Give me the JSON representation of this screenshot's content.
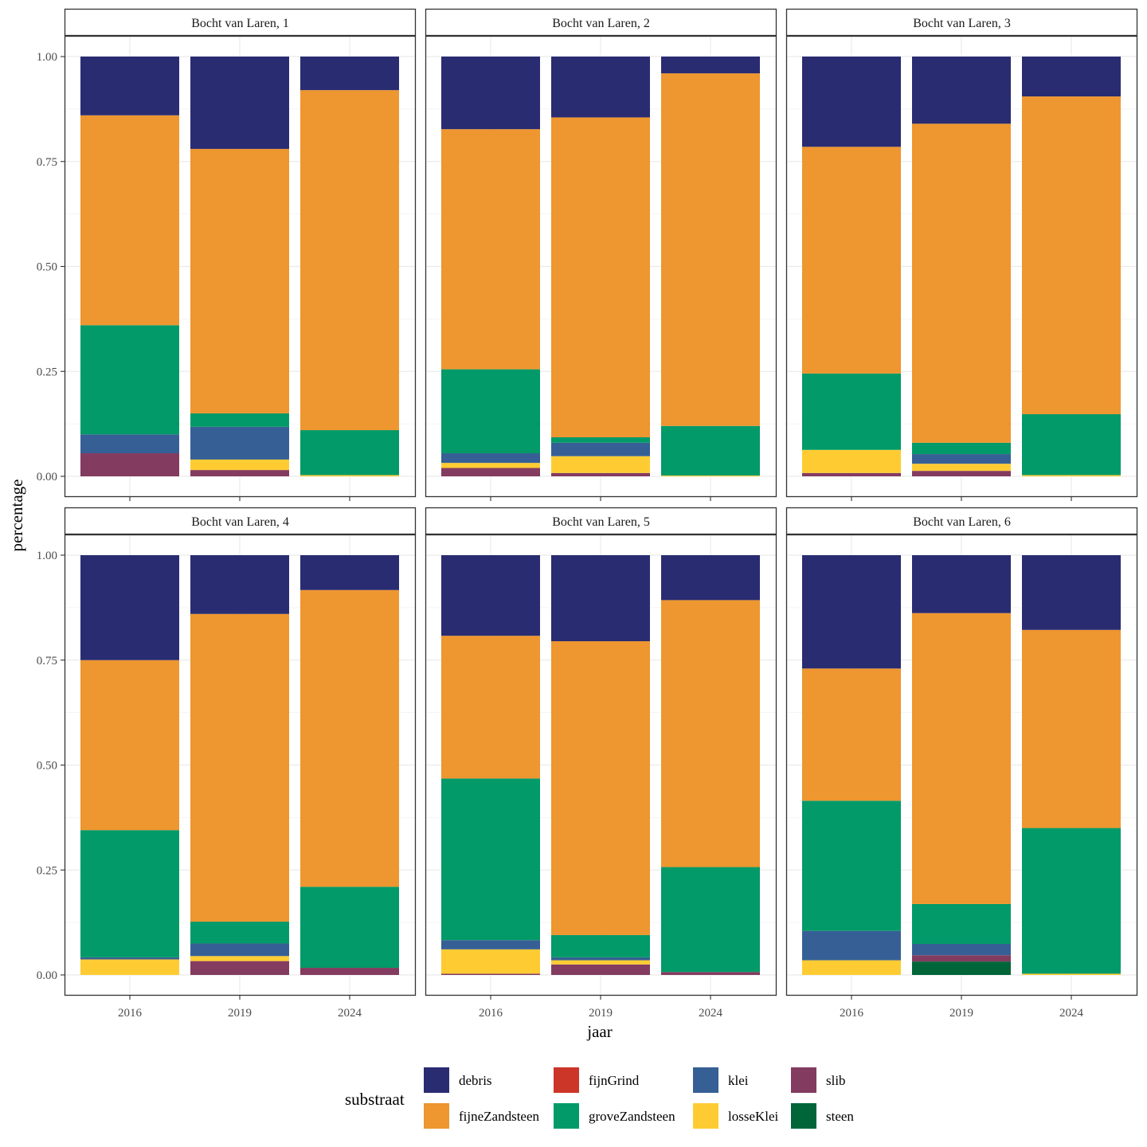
{
  "chart_data": {
    "type": "bar",
    "stacked": true,
    "xlabel": "jaar",
    "ylabel": "percentage",
    "ylim": [
      0,
      1.05
    ],
    "yticks": [
      "0.00",
      "0.25",
      "0.50",
      "0.75",
      "1.00"
    ],
    "ytick_values": [
      0,
      0.25,
      0.5,
      0.75,
      1.0
    ],
    "categories": [
      "2016",
      "2019",
      "2024"
    ],
    "grid": true,
    "legend": {
      "title": "substraat",
      "position": "bottom",
      "entries": [
        {
          "name": "debris",
          "color": "#2A2C72"
        },
        {
          "name": "fijneZandsteen",
          "color": "#EE962F"
        },
        {
          "name": "fijnGrind",
          "color": "#CC3628"
        },
        {
          "name": "groveZandsteen",
          "color": "#029A68"
        },
        {
          "name": "klei",
          "color": "#366095"
        },
        {
          "name": "losseKlei",
          "color": "#FECC32"
        },
        {
          "name": "slib",
          "color": "#843B60"
        },
        {
          "name": "steen",
          "color": "#01653A"
        }
      ]
    },
    "stack_order_bottom_to_top": [
      "steen",
      "slib",
      "losseKlei",
      "klei",
      "groveZandsteen",
      "fijnGrind",
      "fijneZandsteen",
      "debris"
    ],
    "panels": [
      {
        "title": "Bocht van Laren, 1",
        "bars": [
          {
            "x": "2016",
            "values": {
              "steen": 0,
              "slib": 0.055,
              "losseKlei": 0,
              "klei": 0.045,
              "groveZandsteen": 0.26,
              "fijnGrind": 0,
              "fijneZandsteen": 0.5,
              "debris": 0.14
            }
          },
          {
            "x": "2019",
            "values": {
              "steen": 0,
              "slib": 0.015,
              "losseKlei": 0.025,
              "klei": 0.078,
              "groveZandsteen": 0.032,
              "fijnGrind": 0,
              "fijneZandsteen": 0.63,
              "debris": 0.22
            }
          },
          {
            "x": "2024",
            "values": {
              "steen": 0,
              "slib": 0,
              "losseKlei": 0.003,
              "klei": 0,
              "groveZandsteen": 0.107,
              "fijnGrind": 0,
              "fijneZandsteen": 0.81,
              "debris": 0.08
            }
          }
        ]
      },
      {
        "title": "Bocht van Laren, 2",
        "bars": [
          {
            "x": "2016",
            "values": {
              "steen": 0,
              "slib": 0.02,
              "losseKlei": 0.012,
              "klei": 0.023,
              "groveZandsteen": 0.2,
              "fijnGrind": 0,
              "fijneZandsteen": 0.572,
              "debris": 0.173
            }
          },
          {
            "x": "2019",
            "values": {
              "steen": 0,
              "slib": 0.008,
              "losseKlei": 0.04,
              "klei": 0.032,
              "groveZandsteen": 0.013,
              "fijnGrind": 0,
              "fijneZandsteen": 0.762,
              "debris": 0.145
            }
          },
          {
            "x": "2024",
            "values": {
              "steen": 0,
              "slib": 0,
              "losseKlei": 0.002,
              "klei": 0,
              "groveZandsteen": 0.118,
              "fijnGrind": 0,
              "fijneZandsteen": 0.84,
              "debris": 0.04
            }
          }
        ]
      },
      {
        "title": "Bocht van Laren, 3",
        "bars": [
          {
            "x": "2016",
            "values": {
              "steen": 0,
              "slib": 0.008,
              "losseKlei": 0.055,
              "klei": 0,
              "groveZandsteen": 0.182,
              "fijnGrind": 0,
              "fijneZandsteen": 0.54,
              "debris": 0.215
            }
          },
          {
            "x": "2019",
            "values": {
              "steen": 0,
              "slib": 0.013,
              "losseKlei": 0.017,
              "klei": 0.023,
              "groveZandsteen": 0.027,
              "fijnGrind": 0,
              "fijneZandsteen": 0.76,
              "debris": 0.16
            }
          },
          {
            "x": "2024",
            "values": {
              "steen": 0,
              "slib": 0,
              "losseKlei": 0.003,
              "klei": 0,
              "groveZandsteen": 0.145,
              "fijnGrind": 0,
              "fijneZandsteen": 0.757,
              "debris": 0.095
            }
          }
        ]
      },
      {
        "title": "Bocht van Laren, 4",
        "bars": [
          {
            "x": "2016",
            "values": {
              "steen": 0,
              "slib": 0,
              "losseKlei": 0.037,
              "klei": 0.005,
              "groveZandsteen": 0.303,
              "fijnGrind": 0,
              "fijneZandsteen": 0.405,
              "debris": 0.25
            }
          },
          {
            "x": "2019",
            "values": {
              "steen": 0,
              "slib": 0.033,
              "losseKlei": 0.012,
              "klei": 0.03,
              "groveZandsteen": 0.052,
              "fijnGrind": 0,
              "fijneZandsteen": 0.733,
              "debris": 0.14
            }
          },
          {
            "x": "2024",
            "values": {
              "steen": 0,
              "slib": 0.017,
              "losseKlei": 0,
              "klei": 0,
              "groveZandsteen": 0.193,
              "fijnGrind": 0,
              "fijneZandsteen": 0.707,
              "debris": 0.083
            }
          }
        ]
      },
      {
        "title": "Bocht van Laren, 5",
        "bars": [
          {
            "x": "2016",
            "values": {
              "steen": 0,
              "slib": 0.003,
              "losseKlei": 0.058,
              "klei": 0.022,
              "groveZandsteen": 0.385,
              "fijnGrind": 0,
              "fijneZandsteen": 0.34,
              "debris": 0.192
            }
          },
          {
            "x": "2019",
            "values": {
              "steen": 0,
              "slib": 0.025,
              "losseKlei": 0.01,
              "klei": 0.007,
              "groveZandsteen": 0.053,
              "fijnGrind": 0,
              "fijneZandsteen": 0.7,
              "debris": 0.205
            }
          },
          {
            "x": "2024",
            "values": {
              "steen": 0,
              "slib": 0.007,
              "losseKlei": 0,
              "klei": 0,
              "groveZandsteen": 0.25,
              "fijnGrind": 0,
              "fijneZandsteen": 0.636,
              "debris": 0.107
            }
          }
        ]
      },
      {
        "title": "Bocht van Laren, 6",
        "bars": [
          {
            "x": "2016",
            "values": {
              "steen": 0,
              "slib": 0,
              "losseKlei": 0.035,
              "klei": 0.07,
              "groveZandsteen": 0.31,
              "fijnGrind": 0,
              "fijneZandsteen": 0.315,
              "debris": 0.27
            }
          },
          {
            "x": "2019",
            "values": {
              "steen": 0.032,
              "slib": 0.015,
              "losseKlei": 0,
              "klei": 0.027,
              "groveZandsteen": 0.095,
              "fijnGrind": 0,
              "fijneZandsteen": 0.693,
              "debris": 0.138
            }
          },
          {
            "x": "2024",
            "values": {
              "steen": 0,
              "slib": 0,
              "losseKlei": 0.003,
              "klei": 0,
              "groveZandsteen": 0.347,
              "fijnGrind": 0,
              "fijneZandsteen": 0.472,
              "debris": 0.178
            }
          }
        ]
      }
    ]
  }
}
